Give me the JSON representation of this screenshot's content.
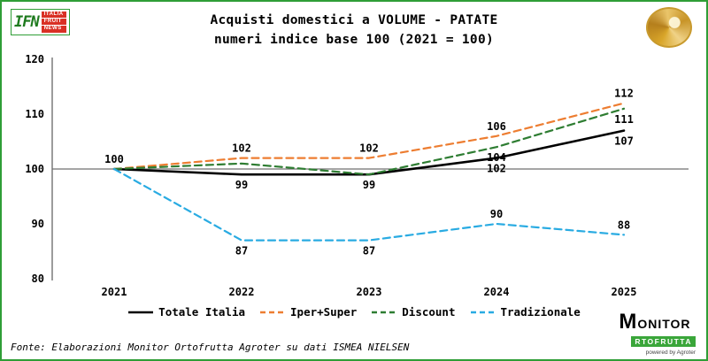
{
  "header": {
    "logo_ifn": {
      "short": "IFN",
      "lines": [
        "ITALIA",
        "FRUIT",
        "NEWS"
      ]
    },
    "title_line1": "Acquisti domestici a VOLUME - PATATE",
    "title_line2": "numeri indice base 100 (2021 = 100)"
  },
  "chart_data": {
    "type": "line",
    "title": "Acquisti domestici a VOLUME - PATATE",
    "subtitle": "numeri indice base 100 (2021 = 100)",
    "categories": [
      "2021",
      "2022",
      "2023",
      "2024",
      "2025"
    ],
    "series": [
      {
        "name": "Totale Italia",
        "color": "#000000",
        "dash": "solid",
        "values": [
          100,
          99,
          99,
          102,
          107
        ]
      },
      {
        "name": "Iper+Super",
        "color": "#ed7d31",
        "dash": "dashed",
        "values": [
          100,
          102,
          102,
          106,
          112
        ]
      },
      {
        "name": "Discount",
        "color": "#2e7d32",
        "dash": "dashed",
        "values": [
          100,
          101,
          99,
          104,
          111
        ]
      },
      {
        "name": "Tradizionale",
        "color": "#29abe2",
        "dash": "dashed",
        "values": [
          100,
          87,
          87,
          90,
          88
        ]
      }
    ],
    "point_labels": [
      {
        "series": "Totale Italia",
        "category": "2021",
        "text": "100",
        "pos": "above"
      },
      {
        "series": "Iper+Super",
        "category": "2022",
        "text": "102",
        "pos": "above"
      },
      {
        "series": "Totale Italia",
        "category": "2022",
        "text": "99",
        "pos": "below"
      },
      {
        "series": "Tradizionale",
        "category": "2022",
        "text": "87",
        "pos": "below"
      },
      {
        "series": "Iper+Super",
        "category": "2023",
        "text": "102",
        "pos": "above"
      },
      {
        "series": "Totale Italia",
        "category": "2023",
        "text": "99",
        "pos": "below"
      },
      {
        "series": "Tradizionale",
        "category": "2023",
        "text": "87",
        "pos": "below"
      },
      {
        "series": "Iper+Super",
        "category": "2024",
        "text": "106",
        "pos": "above"
      },
      {
        "series": "Discount",
        "category": "2024",
        "text": "104",
        "pos": "below"
      },
      {
        "series": "Totale Italia",
        "category": "2024",
        "text": "102",
        "pos": "below"
      },
      {
        "series": "Tradizionale",
        "category": "2024",
        "text": "90",
        "pos": "above"
      },
      {
        "series": "Iper+Super",
        "category": "2025",
        "text": "112",
        "pos": "above"
      },
      {
        "series": "Discount",
        "category": "2025",
        "text": "111",
        "pos": "below"
      },
      {
        "series": "Totale Italia",
        "category": "2025",
        "text": "107",
        "pos": "below"
      },
      {
        "series": "Tradizionale",
        "category": "2025",
        "text": "88",
        "pos": "above"
      }
    ],
    "ylim": [
      80,
      120
    ],
    "yticks": [
      80,
      90,
      100,
      110,
      120
    ],
    "baseline": 100,
    "grid": false,
    "legend_position": "bottom"
  },
  "footer": {
    "source": "Fonte: Elaborazioni Monitor Ortofrutta Agroter su dati ISMEA NIELSEN",
    "brand": {
      "name_top": "MONITOR",
      "name_bottom": "RTOFRUTTA",
      "powered": "powered by Agroter"
    }
  }
}
